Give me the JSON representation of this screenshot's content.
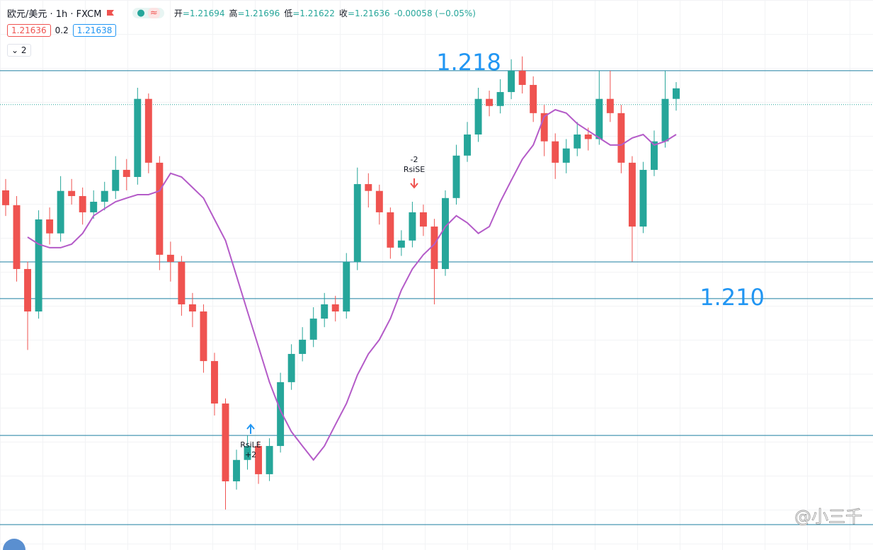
{
  "header": {
    "symbol": "欧元/美元 · 1h · FXCM",
    "ohlc": [
      {
        "label": "开",
        "value": "=1.21694"
      },
      {
        "label": "高",
        "value": "=1.21696"
      },
      {
        "label": "低",
        "value": "=1.21622"
      },
      {
        "label": "收",
        "value": "=1.21636"
      }
    ],
    "change": "-0.00058 (−0.05%)",
    "bid": "1.21636",
    "spread": "0.2",
    "ask": "1.21638",
    "indicators": "2"
  },
  "chart_data": {
    "type": "candlestick",
    "ylim": [
      1.20118,
      1.22048
    ],
    "up_color": "#26a69a",
    "down_color": "#ef5350",
    "open": [
      1.2138,
      1.21328,
      1.21104,
      1.20955,
      1.21278,
      1.21229,
      1.21378,
      1.2136,
      1.21303,
      1.2134,
      1.21378,
      1.21452,
      1.21427,
      1.21701,
      1.21477,
      1.21154,
      1.21129,
      1.2098,
      1.20955,
      1.20781,
      1.20632,
      1.20359,
      1.20434,
      1.20483,
      1.20384,
      1.20483,
      1.20707,
      1.20806,
      1.20856,
      1.2093,
      1.2098,
      1.20955,
      1.21129,
      1.21402,
      1.21378,
      1.21303,
      1.21179,
      1.21204,
      1.21303,
      1.21253,
      1.21104,
      1.21353,
      1.21502,
      1.21576,
      1.21701,
      1.21676,
      1.21725,
      1.218,
      1.2175,
      1.21651,
      1.21552,
      1.21477,
      1.21527,
      1.21576,
      1.2156,
      1.21701,
      1.21651,
      1.21477,
      1.21253,
      1.21452,
      1.21552,
      1.21701
    ],
    "high": [
      1.2142,
      1.2136,
      1.2113,
      1.2131,
      1.2132,
      1.2143,
      1.2142,
      1.2139,
      1.2138,
      1.2141,
      1.215,
      1.2149,
      1.2174,
      1.2172,
      1.215,
      1.212,
      1.2115,
      1.2102,
      1.2098,
      1.2081,
      1.2065,
      1.2047,
      1.2052,
      1.205,
      1.2051,
      1.2074,
      1.2084,
      1.209,
      1.2097,
      1.2102,
      1.2101,
      1.2116,
      1.2146,
      1.2144,
      1.214,
      1.2132,
      1.2124,
      1.2134,
      1.2133,
      1.2128,
      1.2138,
      1.2154,
      1.2162,
      1.2174,
      1.2173,
      1.2177,
      1.2184,
      1.2185,
      1.2178,
      1.2168,
      1.2158,
      1.2156,
      1.2162,
      1.216,
      1.218,
      1.218,
      1.2168,
      1.215,
      1.2148,
      1.2159,
      1.218,
      1.2176
    ],
    "low": [
      1.2129,
      1.2106,
      1.2082,
      1.2093,
      1.2119,
      1.212,
      1.2133,
      1.2126,
      1.2128,
      1.2131,
      1.2135,
      1.2138,
      1.214,
      1.2144,
      1.211,
      1.2106,
      1.2094,
      1.209,
      1.2074,
      1.2059,
      1.2026,
      1.2033,
      1.204,
      1.2035,
      1.2036,
      1.2046,
      1.2068,
      1.2078,
      1.2083,
      1.209,
      1.2092,
      1.2093,
      1.211,
      1.2132,
      1.2126,
      1.2114,
      1.2115,
      1.2118,
      1.2122,
      1.2098,
      1.2108,
      1.2133,
      1.2148,
      1.2155,
      1.2164,
      1.2165,
      1.217,
      1.2172,
      1.2162,
      1.215,
      1.2142,
      1.2144,
      1.215,
      1.2152,
      1.2154,
      1.2162,
      1.2144,
      1.2113,
      1.2123,
      1.2143,
      1.2153,
      1.2166
    ],
    "close": [
      1.21328,
      1.21104,
      1.20955,
      1.21278,
      1.21229,
      1.21378,
      1.2136,
      1.21303,
      1.2134,
      1.21378,
      1.21452,
      1.21427,
      1.21701,
      1.21477,
      1.21154,
      1.21129,
      1.2098,
      1.20955,
      1.20781,
      1.20632,
      1.20359,
      1.20434,
      1.20483,
      1.20384,
      1.20483,
      1.20707,
      1.20806,
      1.20856,
      1.2093,
      1.2098,
      1.20955,
      1.21129,
      1.21402,
      1.21378,
      1.21303,
      1.21179,
      1.21204,
      1.21303,
      1.21253,
      1.21104,
      1.21353,
      1.21502,
      1.21576,
      1.21701,
      1.21676,
      1.21725,
      1.218,
      1.2175,
      1.21651,
      1.21552,
      1.21477,
      1.21527,
      1.21576,
      1.2156,
      1.21701,
      1.21651,
      1.21477,
      1.21253,
      1.21452,
      1.21552,
      1.21701,
      1.21738
    ],
    "ma_color": "#b45bc8",
    "ma_values": [
      null,
      null,
      1.21216,
      1.21191,
      1.21179,
      1.21179,
      1.21191,
      1.21229,
      1.21291,
      1.21316,
      1.2134,
      1.21353,
      1.21365,
      1.21365,
      1.21378,
      1.2144,
      1.21427,
      1.2139,
      1.21353,
      1.21278,
      1.21204,
      1.2108,
      1.20955,
      1.20831,
      1.20707,
      1.20607,
      1.20533,
      1.20483,
      1.20434,
      1.20483,
      1.20558,
      1.20632,
      1.20732,
      1.20806,
      1.20856,
      1.2093,
      1.2103,
      1.21104,
      1.21154,
      1.21191,
      1.21253,
      1.21291,
      1.21266,
      1.21229,
      1.21253,
      1.2134,
      1.21415,
      1.21489,
      1.21539,
      1.21639,
      1.21663,
      1.21651,
      1.21614,
      1.21589,
      1.21564,
      1.21539,
      1.21539,
      1.21564,
      1.21576,
      1.21539,
      1.21552,
      1.21576
    ],
    "level_color": "#1e7fa0",
    "label_color": "#2196f3",
    "levels": [
      {
        "value": 1.218,
        "label": "1.218"
      },
      1.21129,
      {
        "value": 1.21,
        "label": "1.210"
      },
      1.2052,
      1.20207
    ],
    "price_line": 1.21681,
    "signals": [
      {
        "side": "RsiLE",
        "qty": "+2"
      },
      {
        "side": "RsiSE",
        "qty": "-2"
      }
    ],
    "watermark": "@小三千"
  }
}
